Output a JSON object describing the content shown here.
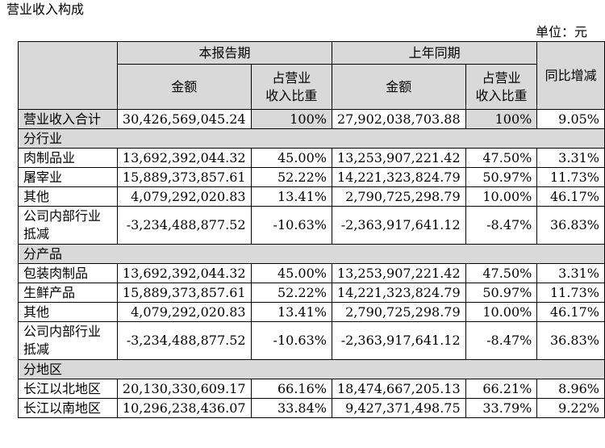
{
  "title": "营业收入构成",
  "unit": "单位：元",
  "header": {
    "current_period": "本报告期",
    "prior_period": "上年同期",
    "amount": "金额",
    "share_line1": "占营业",
    "share_line2": "收入比重",
    "yoy": "同比增减"
  },
  "total": {
    "label": "营业收入合计",
    "cur_amount": "30,426,569,045.24",
    "cur_share": "100%",
    "prev_amount": "27,902,038,703.88",
    "prev_share": "100%",
    "yoy": "9.05%"
  },
  "sections": [
    {
      "title": "分行业",
      "rows": [
        {
          "label1": "肉制品业",
          "label2": "",
          "cur_amount": "13,692,392,044.32",
          "cur_share": "45.00%",
          "prev_amount": "13,253,907,221.42",
          "prev_share": "47.50%",
          "yoy": "3.31%"
        },
        {
          "label1": "屠宰业",
          "label2": "",
          "cur_amount": "15,889,373,857.61",
          "cur_share": "52.22%",
          "prev_amount": "14,221,323,824.79",
          "prev_share": "50.97%",
          "yoy": "11.73%"
        },
        {
          "label1": "其他",
          "label2": "",
          "cur_amount": "4,079,292,020.83",
          "cur_share": "13.41%",
          "prev_amount": "2,790,725,298.79",
          "prev_share": "10.00%",
          "yoy": "46.17%"
        },
        {
          "label1": "公司内部行业",
          "label2": "抵减",
          "cur_amount": "-3,234,488,877.52",
          "cur_share": "-10.63%",
          "prev_amount": "-2,363,917,641.12",
          "prev_share": "-8.47%",
          "yoy": "36.83%"
        }
      ]
    },
    {
      "title": "分产品",
      "rows": [
        {
          "label1": "包装肉制品",
          "label2": "",
          "cur_amount": "13,692,392,044.32",
          "cur_share": "45.00%",
          "prev_amount": "13,253,907,221.42",
          "prev_share": "47.50%",
          "yoy": "3.31%"
        },
        {
          "label1": "生鲜产品",
          "label2": "",
          "cur_amount": "15,889,373,857.61",
          "cur_share": "52.22%",
          "prev_amount": "14,221,323,824.79",
          "prev_share": "50.97%",
          "yoy": "11.73%"
        },
        {
          "label1": "其他",
          "label2": "",
          "cur_amount": "4,079,292,020.83",
          "cur_share": "13.41%",
          "prev_amount": "2,790,725,298.79",
          "prev_share": "10.00%",
          "yoy": "46.17%"
        },
        {
          "label1": "公司内部行业",
          "label2": "抵减",
          "cur_amount": "-3,234,488,877.52",
          "cur_share": "-10.63%",
          "prev_amount": "-2,363,917,641.12",
          "prev_share": "-8.47%",
          "yoy": "36.83%"
        }
      ]
    },
    {
      "title": "分地区",
      "rows": [
        {
          "label1": "长江以北地区",
          "label2": "",
          "cur_amount": "20,130,330,609.17",
          "cur_share": "66.16%",
          "prev_amount": "18,474,667,205.13",
          "prev_share": "66.21%",
          "yoy": "8.96%"
        },
        {
          "label1": "长江以南地区",
          "label2": "",
          "cur_amount": "10,296,238,436.07",
          "cur_share": "33.84%",
          "prev_amount": "9,427,371,498.75",
          "prev_share": "33.79%",
          "yoy": "9.22%"
        }
      ]
    }
  ]
}
